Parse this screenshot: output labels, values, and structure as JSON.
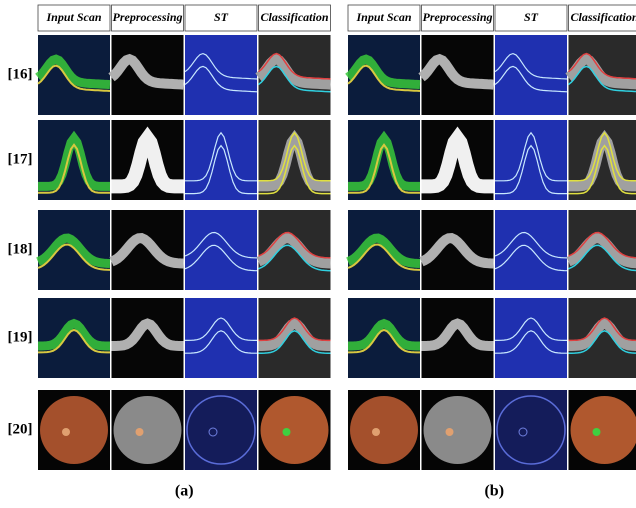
{
  "panels": [
    {
      "caption": "(a)",
      "columns": [
        "Input Scan",
        "Preprocessing",
        "ST",
        "Classification"
      ]
    },
    {
      "caption": "(b)",
      "columns": [
        "Input Scan",
        "Preprocessing",
        "ST",
        "Classification"
      ]
    }
  ],
  "row_labels": [
    "[16]",
    "[17]",
    "[18]",
    "[19]",
    "[20]"
  ]
}
